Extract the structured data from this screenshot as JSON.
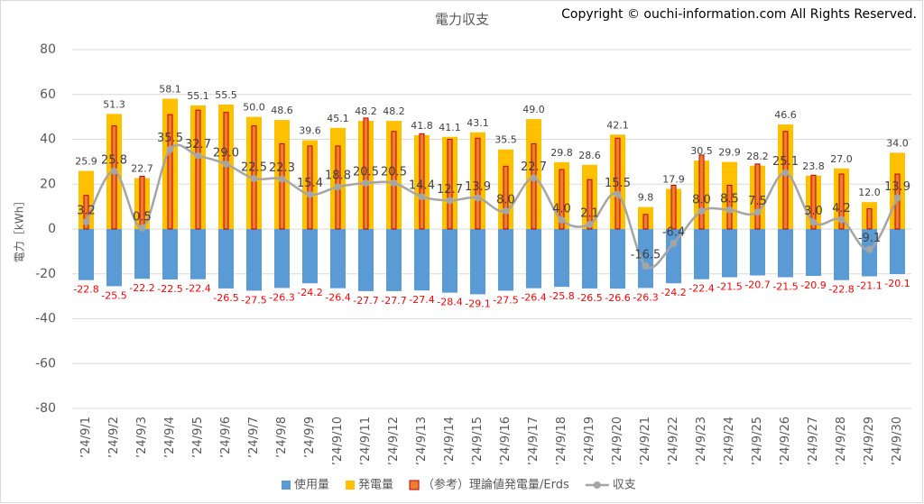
{
  "chart_data": {
    "type": "bar_line",
    "title": "電力収支",
    "copyright": "Copyright © ouchi-information.com All Rights Reserved.",
    "y_label": "電力［kWh］",
    "ylim": [
      -80,
      80
    ],
    "yticks": [
      -80,
      -60,
      -40,
      -20,
      0,
      20,
      40,
      60,
      80
    ],
    "grid": true,
    "legend": "bottom",
    "categories": [
      "’24/9/1",
      "’24/9/2",
      "’24/9/3",
      "’24/9/4",
      "’24/9/5",
      "’24/9/6",
      "’24/9/7",
      "’24/9/8",
      "’24/9/9",
      "’24/9/10",
      "’24/9/11",
      "’24/9/12",
      "’24/9/13",
      "’24/9/14",
      "’24/9/15",
      "’24/9/16",
      "’24/9/17",
      "’24/9/18",
      "’24/9/19",
      "’24/9/20",
      "’24/9/21",
      "’24/9/22",
      "’24/9/23",
      "’24/9/24",
      "’24/9/25",
      "’24/9/26",
      "’24/9/27",
      "’24/9/28",
      "’24/9/29",
      "’24/9/30"
    ],
    "series": [
      {
        "name": "使用量",
        "color": "#5b9bd5",
        "kind": "bar",
        "values": [
          -22.8,
          -25.5,
          -22.2,
          -22.5,
          -22.4,
          -26.5,
          -27.5,
          -26.3,
          -24.2,
          -26.4,
          -27.7,
          -27.7,
          -27.4,
          -28.4,
          -29.1,
          -27.5,
          -26.4,
          -25.8,
          -26.5,
          -26.6,
          -26.3,
          -24.2,
          -22.4,
          -21.5,
          -20.7,
          -21.5,
          -20.9,
          -22.8,
          -21.1,
          -20.1
        ],
        "value_labels": [
          "-22.8",
          "-25.5",
          "-22.2",
          "-22.5",
          "-22.4",
          "-26.5",
          "-27.5",
          "-26.3",
          "-24.2",
          "-26.4",
          "-27.7",
          "-27.7",
          "-27.4",
          "-28.4",
          "-29.1",
          "-27.5",
          "-26.4",
          "-25.8",
          "-26.5",
          "-26.6",
          "-26.3",
          "-24.2",
          "-22.4",
          "-21.5",
          "-20.7",
          "-21.5",
          "-20.9",
          "-22.8",
          "-21.1",
          "-20.1"
        ],
        "label_color": "#ff0000"
      },
      {
        "name": "発電量",
        "color": "#ffc000",
        "kind": "bar",
        "values": [
          25.9,
          51.3,
          22.7,
          58.1,
          55.1,
          55.5,
          50.0,
          48.6,
          39.6,
          45.1,
          48.2,
          48.2,
          41.8,
          41.1,
          43.1,
          35.5,
          49.0,
          29.8,
          28.6,
          42.1,
          9.8,
          17.9,
          30.5,
          29.9,
          28.2,
          46.6,
          23.8,
          27.0,
          12.0,
          34.0
        ],
        "value_labels": [
          "25.9",
          "51.3",
          "22.7",
          "58.1",
          "55.1",
          "55.5",
          "50.0",
          "48.6",
          "39.6",
          "45.1",
          "48.2",
          "48.2",
          "41.8",
          "41.1",
          "43.1",
          "35.5",
          "49.0",
          "29.8",
          "28.6",
          "42.1",
          "9.8",
          "17.9",
          "30.5",
          "29.9",
          "28.2",
          "46.6",
          "23.8",
          "27.0",
          "12.0",
          "34.0"
        ],
        "label_color": "#404040"
      },
      {
        "name": "（参考）理論値発電量/Erds",
        "color": "#ed7d31",
        "kind": "thin",
        "values": [
          15,
          46,
          23.5,
          51,
          53,
          52,
          46,
          38,
          37,
          37,
          49.5,
          43.5,
          42.5,
          40,
          40.5,
          28,
          38,
          26.5,
          22,
          40.5,
          6.5,
          19.5,
          33,
          19.5,
          29,
          43.5,
          24,
          24.5,
          9,
          24.5
        ]
      },
      {
        "name": "収支",
        "color": "#a5a5a5",
        "kind": "line",
        "values": [
          3.2,
          25.8,
          0.5,
          35.5,
          32.7,
          29.0,
          22.5,
          22.3,
          15.4,
          18.8,
          20.5,
          20.5,
          14.4,
          12.7,
          13.9,
          8.0,
          22.7,
          4.0,
          2.1,
          15.5,
          -16.5,
          -6.4,
          8.0,
          8.5,
          7.5,
          25.1,
          3.0,
          4.2,
          -9.1,
          13.9
        ],
        "value_labels": [
          "3.2",
          "25.8",
          "0.5",
          "35.5",
          "32.7",
          "29.0",
          "22.5",
          "22.3",
          "15.4",
          "18.8",
          "20.5",
          "20.5",
          "14.4",
          "12.7",
          "13.9",
          "8.0",
          "22.7",
          "4.0",
          "2.1",
          "15.5",
          "-16.5",
          "-6.4",
          "8.0",
          "8.5",
          "7.5",
          "25.1",
          "3.0",
          "4.2",
          "-9.1",
          "13.9"
        ],
        "label_color": "#404040"
      }
    ]
  }
}
